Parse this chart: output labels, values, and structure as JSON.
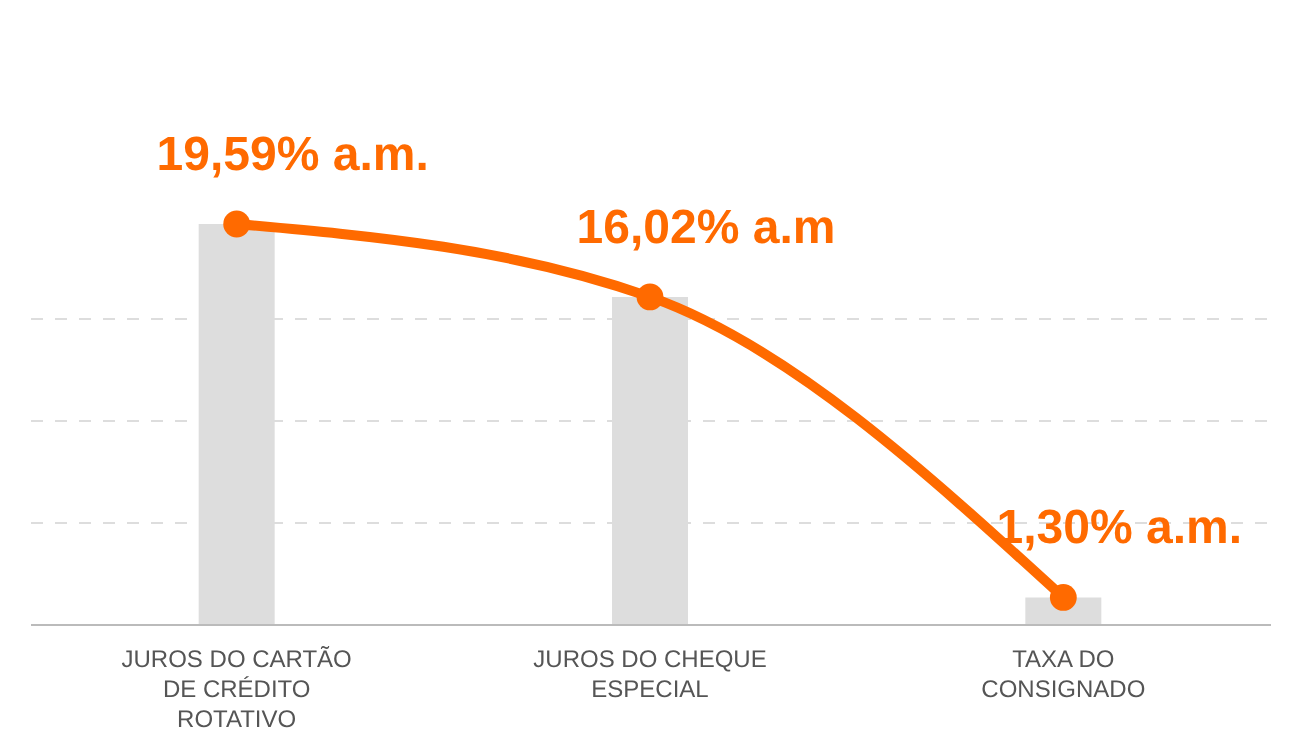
{
  "chart_data": {
    "type": "bar",
    "categories": [
      "JUROS DO CARTÃO DE CRÉDITO ROTATIVO",
      "JUROS DO CHEQUE ESPECIAL",
      "TAXA DO CONSIGNADO"
    ],
    "series": [
      {
        "color": "#dddddd",
        "values": [
          19.59,
          16.02,
          1.3
        ]
      },
      {
        "type": "line",
        "color": "#ff6a00",
        "values": [
          19.59,
          16.02,
          1.3
        ],
        "value_labels": [
          "19,59% a.m.",
          "16,02% a.m",
          "1,30% a.m."
        ]
      }
    ],
    "yticks": [
      {
        "value": 0,
        "label": null
      },
      {
        "value": 5,
        "label": null
      },
      {
        "value": 10,
        "label": null
      },
      {
        "value": 15,
        "label": null
      }
    ],
    "tick_labels": "x",
    "grid": "y",
    "marker": "circle",
    "line_style": "solid"
  }
}
